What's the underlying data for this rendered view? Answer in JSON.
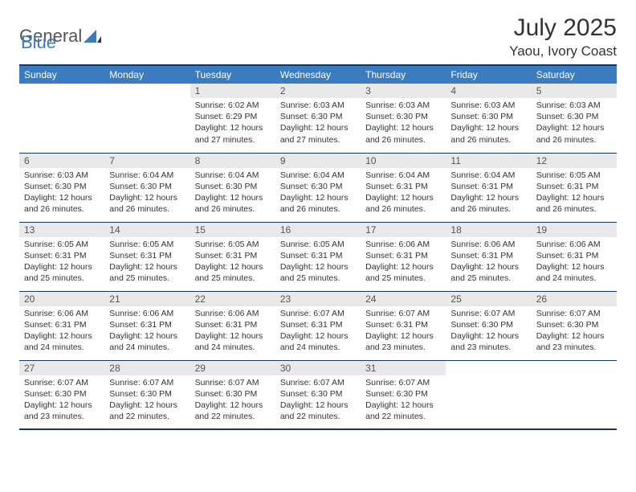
{
  "brand": {
    "part1": "General",
    "part2": "Blue"
  },
  "header": {
    "title": "July 2025",
    "location": "Yaou, Ivory Coast"
  },
  "colors": {
    "header_bg": "#3b7bbf",
    "header_border": "#17375e",
    "daynum_bg": "#e9e9e9",
    "brand_blue": "#3b7bbf",
    "text": "#333333"
  },
  "weekdays": [
    "Sunday",
    "Monday",
    "Tuesday",
    "Wednesday",
    "Thursday",
    "Friday",
    "Saturday"
  ],
  "layout": {
    "rows": 5,
    "cols": 7,
    "first_day_column": 2,
    "days_in_month": 31
  },
  "days": {
    "1": {
      "sunrise": "6:02 AM",
      "sunset": "6:29 PM",
      "daylight": "12 hours and 27 minutes."
    },
    "2": {
      "sunrise": "6:03 AM",
      "sunset": "6:30 PM",
      "daylight": "12 hours and 27 minutes."
    },
    "3": {
      "sunrise": "6:03 AM",
      "sunset": "6:30 PM",
      "daylight": "12 hours and 26 minutes."
    },
    "4": {
      "sunrise": "6:03 AM",
      "sunset": "6:30 PM",
      "daylight": "12 hours and 26 minutes."
    },
    "5": {
      "sunrise": "6:03 AM",
      "sunset": "6:30 PM",
      "daylight": "12 hours and 26 minutes."
    },
    "6": {
      "sunrise": "6:03 AM",
      "sunset": "6:30 PM",
      "daylight": "12 hours and 26 minutes."
    },
    "7": {
      "sunrise": "6:04 AM",
      "sunset": "6:30 PM",
      "daylight": "12 hours and 26 minutes."
    },
    "8": {
      "sunrise": "6:04 AM",
      "sunset": "6:30 PM",
      "daylight": "12 hours and 26 minutes."
    },
    "9": {
      "sunrise": "6:04 AM",
      "sunset": "6:30 PM",
      "daylight": "12 hours and 26 minutes."
    },
    "10": {
      "sunrise": "6:04 AM",
      "sunset": "6:31 PM",
      "daylight": "12 hours and 26 minutes."
    },
    "11": {
      "sunrise": "6:04 AM",
      "sunset": "6:31 PM",
      "daylight": "12 hours and 26 minutes."
    },
    "12": {
      "sunrise": "6:05 AM",
      "sunset": "6:31 PM",
      "daylight": "12 hours and 26 minutes."
    },
    "13": {
      "sunrise": "6:05 AM",
      "sunset": "6:31 PM",
      "daylight": "12 hours and 25 minutes."
    },
    "14": {
      "sunrise": "6:05 AM",
      "sunset": "6:31 PM",
      "daylight": "12 hours and 25 minutes."
    },
    "15": {
      "sunrise": "6:05 AM",
      "sunset": "6:31 PM",
      "daylight": "12 hours and 25 minutes."
    },
    "16": {
      "sunrise": "6:05 AM",
      "sunset": "6:31 PM",
      "daylight": "12 hours and 25 minutes."
    },
    "17": {
      "sunrise": "6:06 AM",
      "sunset": "6:31 PM",
      "daylight": "12 hours and 25 minutes."
    },
    "18": {
      "sunrise": "6:06 AM",
      "sunset": "6:31 PM",
      "daylight": "12 hours and 25 minutes."
    },
    "19": {
      "sunrise": "6:06 AM",
      "sunset": "6:31 PM",
      "daylight": "12 hours and 24 minutes."
    },
    "20": {
      "sunrise": "6:06 AM",
      "sunset": "6:31 PM",
      "daylight": "12 hours and 24 minutes."
    },
    "21": {
      "sunrise": "6:06 AM",
      "sunset": "6:31 PM",
      "daylight": "12 hours and 24 minutes."
    },
    "22": {
      "sunrise": "6:06 AM",
      "sunset": "6:31 PM",
      "daylight": "12 hours and 24 minutes."
    },
    "23": {
      "sunrise": "6:07 AM",
      "sunset": "6:31 PM",
      "daylight": "12 hours and 24 minutes."
    },
    "24": {
      "sunrise": "6:07 AM",
      "sunset": "6:31 PM",
      "daylight": "12 hours and 23 minutes."
    },
    "25": {
      "sunrise": "6:07 AM",
      "sunset": "6:30 PM",
      "daylight": "12 hours and 23 minutes."
    },
    "26": {
      "sunrise": "6:07 AM",
      "sunset": "6:30 PM",
      "daylight": "12 hours and 23 minutes."
    },
    "27": {
      "sunrise": "6:07 AM",
      "sunset": "6:30 PM",
      "daylight": "12 hours and 23 minutes."
    },
    "28": {
      "sunrise": "6:07 AM",
      "sunset": "6:30 PM",
      "daylight": "12 hours and 22 minutes."
    },
    "29": {
      "sunrise": "6:07 AM",
      "sunset": "6:30 PM",
      "daylight": "12 hours and 22 minutes."
    },
    "30": {
      "sunrise": "6:07 AM",
      "sunset": "6:30 PM",
      "daylight": "12 hours and 22 minutes."
    },
    "31": {
      "sunrise": "6:07 AM",
      "sunset": "6:30 PM",
      "daylight": "12 hours and 22 minutes."
    }
  },
  "labels": {
    "sunrise": "Sunrise:",
    "sunset": "Sunset:",
    "daylight": "Daylight:"
  }
}
